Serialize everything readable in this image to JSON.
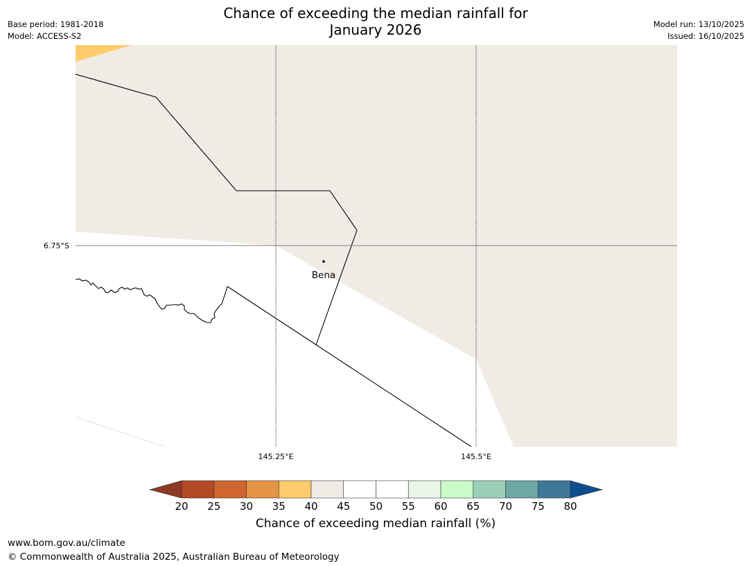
{
  "header": {
    "title_line1": "Chance of exceeding the median rainfall for",
    "title_line2": "January 2026",
    "base_period": "Base period: 1981-2018",
    "model": "Model: ACCESS-S2",
    "model_run": "Model run: 13/10/2025",
    "issued": "Issued: 16/10/2025"
  },
  "map": {
    "lat_label": "6.75°S",
    "lon_labels": [
      "145.25°E",
      "145.5°E"
    ],
    "place": {
      "name": "Bena",
      "icon": "point-marker-icon"
    },
    "category_colors": {
      "35-40": "#fecc6c",
      "40-45": "#f0ebe5",
      "45-55": "#ffffff"
    }
  },
  "colorbar": {
    "label": "Chance of exceeding median rainfall (%)",
    "ticks": [
      "20",
      "25",
      "30",
      "35",
      "40",
      "45",
      "50",
      "55",
      "60",
      "65",
      "70",
      "75",
      "80"
    ],
    "under_color": "#8c3a22",
    "over_color": "#0e4d8d",
    "bins": [
      {
        "range": "20-25",
        "color": "#b24a25"
      },
      {
        "range": "25-30",
        "color": "#cf6530"
      },
      {
        "range": "30-35",
        "color": "#e39445"
      },
      {
        "range": "35-40",
        "color": "#fecc6c"
      },
      {
        "range": "40-45",
        "color": "#f0ebe5"
      },
      {
        "range": "45-50",
        "color": "#ffffff"
      },
      {
        "range": "50-55",
        "color": "#ffffff"
      },
      {
        "range": "55-60",
        "color": "#eaf6e8"
      },
      {
        "range": "60-65",
        "color": "#c8fbc8"
      },
      {
        "range": "65-70",
        "color": "#9bcfb8"
      },
      {
        "range": "70-75",
        "color": "#6fa6a6"
      },
      {
        "range": "75-80",
        "color": "#3e7898"
      }
    ]
  },
  "footer": {
    "url": "www.bom.gov.au/climate",
    "copyright": "© Commonwealth of Australia 2025, Australian Bureau of Meteorology"
  }
}
